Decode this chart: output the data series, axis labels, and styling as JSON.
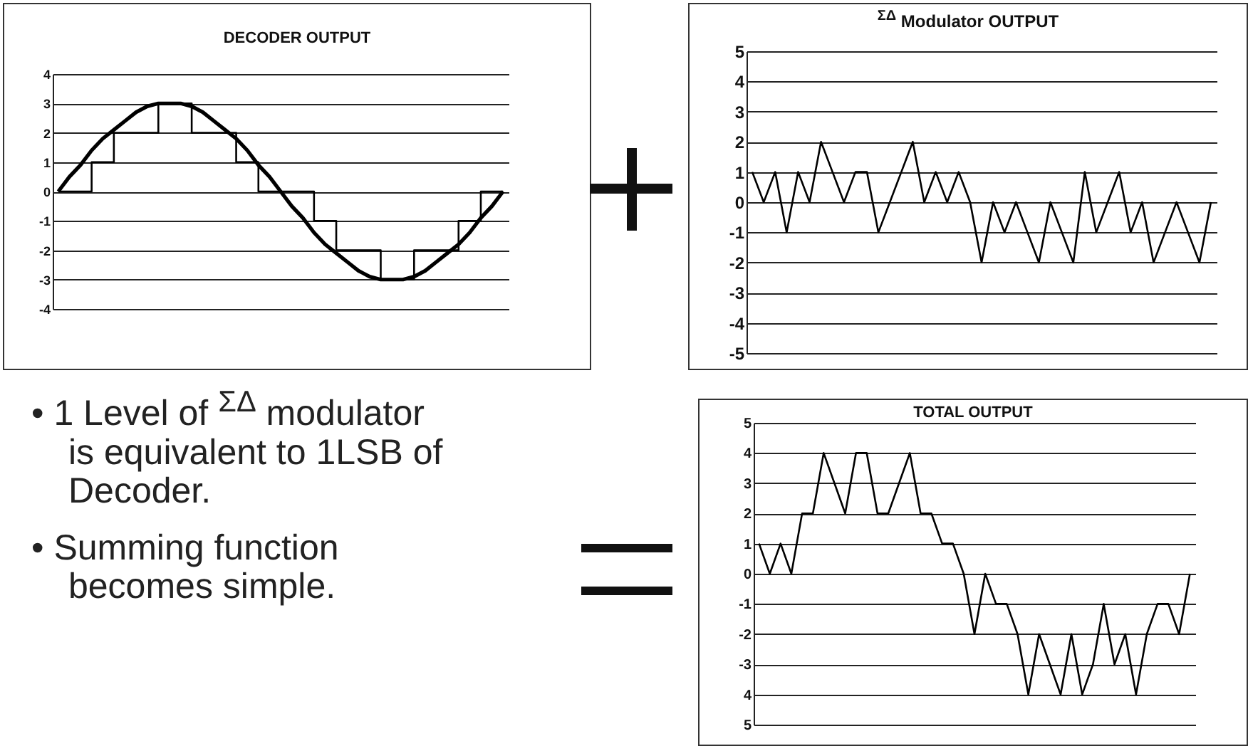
{
  "chart_data": [
    {
      "type": "line",
      "title": "DECODER OUTPUT",
      "categories": [
        null,
        null,
        null,
        null,
        null,
        null,
        null,
        null,
        null,
        null,
        null,
        null,
        null,
        null,
        null,
        null,
        null,
        null,
        null,
        null,
        null,
        null,
        null,
        null,
        null,
        null,
        null,
        null,
        null,
        null,
        null,
        null,
        null,
        null,
        null,
        null,
        null,
        null,
        null,
        null,
        null
      ],
      "series": [
        {
          "type": "line",
          "color": "#000000",
          "values": [
            0,
            0.5,
            0.9,
            1.4,
            1.8,
            2.1,
            2.4,
            2.7,
            2.9,
            3,
            3,
            3,
            2.9,
            2.7,
            2.4,
            2.1,
            1.8,
            1.4,
            0.9,
            0.5,
            0,
            -0.5,
            -0.9,
            -1.4,
            -1.8,
            -2.1,
            -2.4,
            -2.7,
            -2.9,
            -3,
            -3,
            -3,
            -2.9,
            -2.7,
            -2.4,
            -2.1,
            -1.8,
            -1.4,
            -0.9,
            -0.5,
            0
          ]
        },
        {
          "type": "step",
          "color": "#000000",
          "values": [
            0,
            0,
            0,
            1,
            1,
            2,
            2,
            2,
            2,
            3,
            3,
            3,
            2,
            2,
            2,
            2,
            1,
            1,
            0,
            0,
            0,
            0,
            0,
            -1,
            -1,
            -2,
            -2,
            -2,
            -2,
            -3,
            -3,
            -3,
            -2,
            -2,
            -2,
            -2,
            -1,
            -1,
            0,
            0,
            0
          ]
        }
      ],
      "ylim": [
        -4,
        4
      ],
      "yticks": [
        -4,
        -3,
        -2,
        -1,
        0,
        1,
        2,
        3,
        4
      ],
      "grid": "y",
      "tick_labels": "y"
    },
    {
      "type": "line",
      "title": "$^{ΣΔ}$ Modulator OUTPUT",
      "categories": [
        null,
        null,
        null,
        null,
        null,
        null,
        null,
        null,
        null,
        null,
        null,
        null,
        null,
        null,
        null,
        null,
        null,
        null,
        null,
        null,
        null,
        null,
        null,
        null,
        null,
        null,
        null,
        null,
        null,
        null,
        null,
        null,
        null,
        null,
        null,
        null,
        null,
        null,
        null,
        null,
        null
      ],
      "series": [
        {
          "color": "#000000",
          "values": [
            1,
            0,
            1,
            -1,
            1,
            0,
            2,
            1,
            0,
            1,
            1,
            -1,
            0,
            1,
            2,
            0,
            1,
            0,
            1,
            0,
            -2,
            0,
            -1,
            0,
            -1,
            -2,
            0,
            -1,
            -2,
            1,
            -1,
            0,
            1,
            -1,
            0,
            -2,
            -1,
            0,
            -1,
            -2,
            0
          ]
        }
      ],
      "ylim": [
        -5,
        5
      ],
      "yticks": [
        -5,
        -4,
        -3,
        -2,
        -1,
        0,
        1,
        2,
        3,
        4,
        5
      ],
      "grid": "y",
      "tick_labels": "y"
    },
    {
      "type": "line",
      "title": "TOTAL OUTPUT",
      "categories": [
        null,
        null,
        null,
        null,
        null,
        null,
        null,
        null,
        null,
        null,
        null,
        null,
        null,
        null,
        null,
        null,
        null,
        null,
        null,
        null,
        null,
        null,
        null,
        null,
        null,
        null,
        null,
        null,
        null,
        null,
        null,
        null,
        null,
        null,
        null,
        null,
        null,
        null,
        null,
        null,
        null
      ],
      "series": [
        {
          "color": "#000000",
          "values": [
            1,
            0,
            1,
            0,
            2,
            2,
            4,
            3,
            2,
            4,
            4,
            2,
            2,
            3,
            4,
            2,
            2,
            1,
            1,
            0,
            -2,
            0,
            -1,
            -1,
            -2,
            -4,
            -2,
            -3,
            -4,
            -2,
            -4,
            -3,
            -1,
            -3,
            -2,
            -4,
            -2,
            -1,
            -1,
            -2,
            0
          ]
        }
      ],
      "ylim": [
        -5,
        5
      ],
      "yticks": [
        {
          "value": -5,
          "label": "5"
        },
        {
          "value": -4,
          "label": "4"
        },
        -3,
        -2,
        -1,
        0,
        1,
        2,
        3,
        4,
        5
      ],
      "grid": "y",
      "tick_labels": "y"
    },
    {
      "type": "other",
      "annotations": [
        "• 1 Level of $^{ΣΔ}$ modulator is equivalent to 1LSB of Decoder.",
        "• Summing function becomes simple."
      ]
    }
  ]
}
